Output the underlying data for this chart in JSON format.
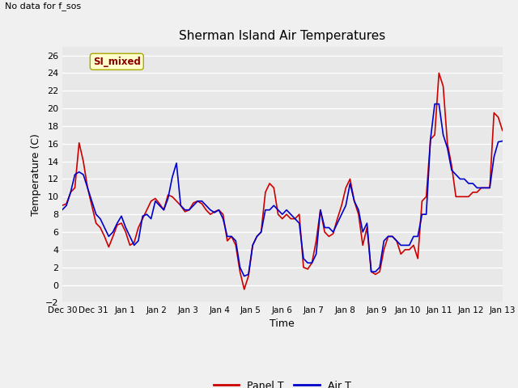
{
  "title": "Sherman Island Air Temperatures",
  "xlabel": "Time",
  "ylabel": "Temperature (C)",
  "note": "No data for f_sos",
  "label_box": "SI_mixed",
  "ylim": [
    -2,
    27
  ],
  "yticks": [
    -2,
    0,
    2,
    4,
    6,
    8,
    10,
    12,
    14,
    16,
    18,
    20,
    22,
    24,
    26
  ],
  "xtick_labels": [
    "Dec 30",
    "Dec 31",
    "Jan 1",
    "Jan 2",
    "Jan 3",
    "Jan 4",
    "Jan 5",
    "Jan 6",
    "Jan 7",
    "Jan 8",
    "Jan 9",
    "Jan 10",
    "Jan 11",
    "Jan 12",
    "Jan 13"
  ],
  "bg_color": "#e8e8e8",
  "fig_color": "#f0f0f0",
  "panel_color": "#cc0000",
  "air_color": "#0000cc",
  "panel_T": [
    9.0,
    9.2,
    10.5,
    11.0,
    16.1,
    14.0,
    11.0,
    9.0,
    7.0,
    6.5,
    5.5,
    4.3,
    5.5,
    6.8,
    7.0,
    6.0,
    4.5,
    4.8,
    6.5,
    7.5,
    8.5,
    9.5,
    9.8,
    9.2,
    8.5,
    10.2,
    10.0,
    9.5,
    9.0,
    8.3,
    8.5,
    9.3,
    9.5,
    9.2,
    8.5,
    8.0,
    8.3,
    8.5,
    8.0,
    5.0,
    5.5,
    4.5,
    1.5,
    -0.5,
    1.0,
    4.5,
    5.5,
    6.0,
    10.5,
    11.5,
    11.0,
    8.0,
    7.5,
    8.0,
    7.5,
    7.5,
    8.0,
    2.0,
    1.8,
    2.5,
    5.0,
    8.5,
    6.0,
    5.5,
    5.8,
    7.5,
    9.0,
    11.0,
    12.0,
    9.5,
    8.0,
    4.5,
    6.5,
    1.5,
    1.2,
    1.5,
    4.0,
    5.5,
    5.5,
    5.0,
    3.5,
    4.0,
    4.0,
    4.5,
    3.0,
    9.5,
    10.0,
    16.5,
    17.0,
    24.0,
    22.5,
    16.0,
    13.5,
    10.0,
    10.0,
    10.0,
    10.0,
    10.5,
    10.5,
    11.0,
    11.0,
    11.0,
    19.5,
    19.0,
    17.5
  ],
  "air_T": [
    8.5,
    9.0,
    10.5,
    12.5,
    12.8,
    12.5,
    11.0,
    9.5,
    8.0,
    7.5,
    6.5,
    5.5,
    6.0,
    7.0,
    7.8,
    6.5,
    5.5,
    4.5,
    5.0,
    7.8,
    8.0,
    7.5,
    9.5,
    9.0,
    8.5,
    9.8,
    12.2,
    13.8,
    9.0,
    8.5,
    8.5,
    9.0,
    9.5,
    9.5,
    9.0,
    8.5,
    8.2,
    8.5,
    7.5,
    5.5,
    5.5,
    5.0,
    2.0,
    1.0,
    1.2,
    4.5,
    5.5,
    6.0,
    8.5,
    8.5,
    9.0,
    8.5,
    8.0,
    8.5,
    8.0,
    7.5,
    7.0,
    3.0,
    2.5,
    2.5,
    3.5,
    8.5,
    6.5,
    6.5,
    6.0,
    7.0,
    8.0,
    9.0,
    11.5,
    9.5,
    8.5,
    6.0,
    7.0,
    1.5,
    1.5,
    2.0,
    5.0,
    5.5,
    5.5,
    5.0,
    4.5,
    4.5,
    4.5,
    5.5,
    5.5,
    8.0,
    8.0,
    16.5,
    20.5,
    20.5,
    17.0,
    15.5,
    13.0,
    12.5,
    12.0,
    12.0,
    11.5,
    11.5,
    11.0,
    11.0,
    11.0,
    11.0,
    14.5,
    16.2,
    16.3
  ]
}
